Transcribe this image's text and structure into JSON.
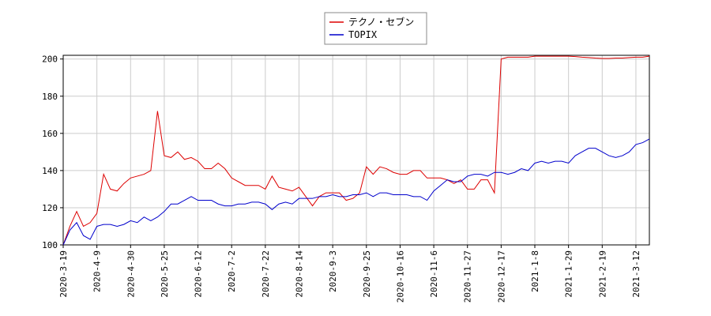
{
  "chart_data": {
    "type": "line",
    "x": [
      "2020-3-19",
      null,
      null,
      null,
      null,
      "2020-4-9",
      null,
      null,
      null,
      null,
      "2020-4-30",
      null,
      null,
      null,
      null,
      "2020-5-25",
      null,
      null,
      null,
      null,
      "2020-6-12",
      null,
      null,
      null,
      null,
      "2020-7-2",
      null,
      null,
      null,
      null,
      "2020-7-22",
      null,
      null,
      null,
      null,
      "2020-8-14",
      null,
      null,
      null,
      null,
      "2020-9-3",
      null,
      null,
      null,
      null,
      "2020-9-25",
      null,
      null,
      null,
      null,
      "2020-10-16",
      null,
      null,
      null,
      null,
      "2020-11-6",
      null,
      null,
      null,
      null,
      "2020-11-27",
      null,
      null,
      null,
      null,
      "2020-12-17",
      null,
      null,
      null,
      null,
      "2021-1-8",
      null,
      null,
      null,
      null,
      "2021-1-29",
      null,
      null,
      null,
      null,
      "2021-2-19",
      null,
      null,
      null,
      null,
      "2021-3-12",
      null,
      null
    ],
    "series": [
      {
        "name": "テクノ・セブン",
        "color": "#dd0000",
        "values": [
          100,
          110,
          118,
          110,
          112,
          117,
          138,
          130,
          129,
          133,
          136,
          137,
          138,
          140,
          172,
          148,
          147,
          150,
          146,
          147,
          145,
          141,
          141,
          144,
          141,
          136,
          134,
          132,
          132,
          132,
          130,
          137,
          131,
          130,
          129,
          131,
          126,
          121,
          126,
          128,
          128,
          128,
          124,
          125,
          128,
          142,
          138,
          142,
          141,
          139,
          138,
          138,
          140,
          140,
          136,
          136,
          136,
          135,
          133,
          135,
          130,
          130,
          135,
          135,
          128,
          200,
          201,
          201,
          201,
          201,
          201.5,
          201.5,
          201.5,
          201.5,
          201.5,
          201.5,
          201.3,
          201,
          200.8,
          200.5,
          200.3,
          200.3,
          200.5,
          200.5,
          200.8,
          201,
          201,
          201.5
        ]
      },
      {
        "name": "TOPIX",
        "color": "#0000cc",
        "values": [
          100,
          108,
          112,
          105,
          103,
          110,
          111,
          111,
          110,
          111,
          113,
          112,
          115,
          113,
          115,
          118,
          122,
          122,
          124,
          126,
          124,
          124,
          124,
          122,
          121,
          121,
          122,
          122,
          123,
          123,
          122,
          119,
          122,
          123,
          122,
          125,
          125,
          125,
          126,
          126,
          127,
          126,
          126,
          127,
          127,
          128,
          126,
          128,
          128,
          127,
          127,
          127,
          126,
          126,
          124,
          129,
          132,
          135,
          134,
          134,
          137,
          138,
          138,
          137,
          139,
          139,
          138,
          139,
          141,
          140,
          144,
          145,
          144,
          145,
          145,
          144,
          148,
          150,
          152,
          152,
          150,
          148,
          147,
          148,
          150,
          154,
          155,
          157
        ]
      }
    ],
    "ylim": [
      100,
      202
    ],
    "yticks": [
      100,
      120,
      140,
      160,
      180,
      200
    ],
    "grid": true,
    "legend": "top"
  }
}
